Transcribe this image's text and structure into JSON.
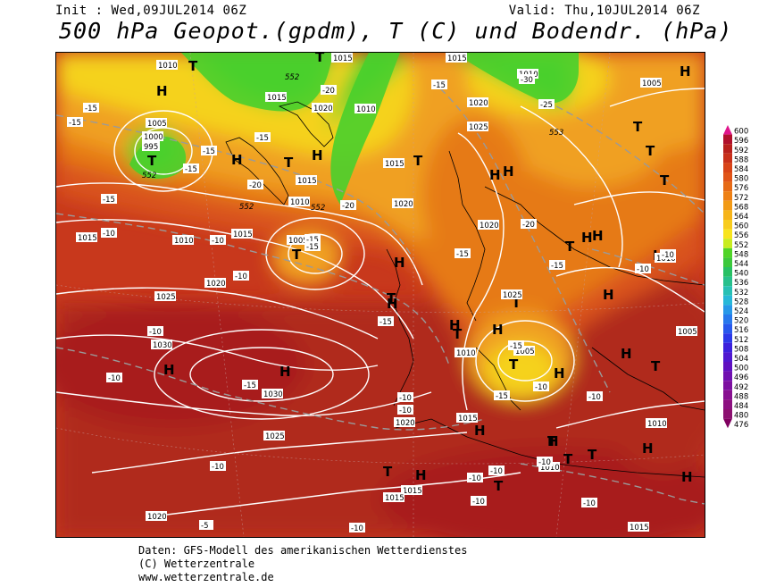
{
  "header": {
    "init": "Init : Wed,09JUL2014 06Z",
    "valid": "Valid: Thu,10JUL2014 06Z",
    "title": "500 hPa Geopot.(gpdm), T (C) und Bodendr. (hPa)"
  },
  "footer": {
    "line1": "Daten: GFS-Modell des amerikanischen Wetterdienstes",
    "line2": "(C) Wetterzentrale",
    "line3": "www.wetterzentrale.de"
  },
  "colors": {
    "dark_red": "#a81e1e",
    "red": "#c8381c",
    "red_orange": "#d9531a",
    "orange": "#e67a14",
    "light_orange": "#f0a020",
    "yellow": "#f5d21e",
    "light_yellow": "#f7e629",
    "green": "#4cd22c",
    "light_green": "#7ee23a"
  },
  "scale": {
    "values": [
      "600",
      "596",
      "592",
      "588",
      "584",
      "580",
      "576",
      "572",
      "568",
      "564",
      "560",
      "556",
      "552",
      "548",
      "544",
      "540",
      "536",
      "532",
      "528",
      "524",
      "520",
      "516",
      "512",
      "508",
      "504",
      "500",
      "496",
      "492",
      "488",
      "484",
      "480",
      "476"
    ],
    "colors": [
      "#e0148c",
      "#b0102c",
      "#b8201c",
      "#c8301a",
      "#d84418",
      "#e05418",
      "#e66a16",
      "#ee8014",
      "#f29a16",
      "#f6b41a",
      "#f8cc1e",
      "#f8e41e",
      "#c8ec20",
      "#50d428",
      "#3cc83c",
      "#28c064",
      "#28c08c",
      "#28c0b4",
      "#28b8d8",
      "#2898e8",
      "#2878ec",
      "#2858ec",
      "#2c38e8",
      "#3c20dc",
      "#5018d0",
      "#6010c0",
      "#7010b0",
      "#7c10a0",
      "#881090",
      "#8c1080",
      "#8c1070",
      "#800060"
    ]
  },
  "map_labels": {
    "highs": [
      "H",
      "H",
      "H",
      "H",
      "H",
      "H",
      "H",
      "H",
      "H",
      "H",
      "H",
      "H",
      "H",
      "H",
      "H",
      "H",
      "H",
      "H",
      "H",
      "H",
      "H",
      "H",
      "H"
    ],
    "lows": [
      "T",
      "T",
      "T",
      "T",
      "T",
      "T",
      "T",
      "T",
      "T",
      "T",
      "T",
      "T",
      "T",
      "T",
      "T",
      "T",
      "T",
      "T",
      "T",
      "T"
    ],
    "pressure": [
      "1010",
      "1015",
      "1005",
      "1000",
      "995",
      "1015",
      "1020",
      "1010",
      "1015",
      "1010",
      "1025",
      "1020",
      "1015",
      "1010",
      "1005",
      "1015",
      "1020",
      "1025",
      "1030",
      "1030",
      "1025",
      "1020",
      "1015",
      "1015",
      "1010",
      "1015",
      "1020",
      "1025",
      "1005",
      "1010",
      "1005",
      "1010",
      "1015",
      "1020",
      "1010",
      "1005",
      "1010",
      "1015",
      "1010",
      "1015",
      "1005",
      "1010",
      "1020",
      "1025",
      "1030",
      "1010",
      "1010"
    ],
    "temperature": [
      "-25",
      "-15",
      "-15",
      "-20",
      "-20",
      "-20",
      "-15",
      "-15",
      "-20",
      "-15",
      "-15",
      "-15",
      "-10",
      "-10",
      "-10",
      "-15",
      "-15",
      "-20",
      "-25",
      "-15",
      "-15",
      "-15",
      "-15",
      "-10",
      "-15",
      "-15",
      "-10",
      "-10",
      "-10",
      "-15",
      "-10",
      "-10",
      "-5",
      "-10",
      "-10",
      "-10",
      "-10",
      "-10",
      "-10",
      "-10",
      "-10",
      "-10",
      "-10",
      "-15",
      "-15",
      "-20",
      "-15",
      "-20"
    ],
    "geopot": [
      "552",
      "552",
      "552",
      "552",
      "553",
      "553"
    ]
  }
}
